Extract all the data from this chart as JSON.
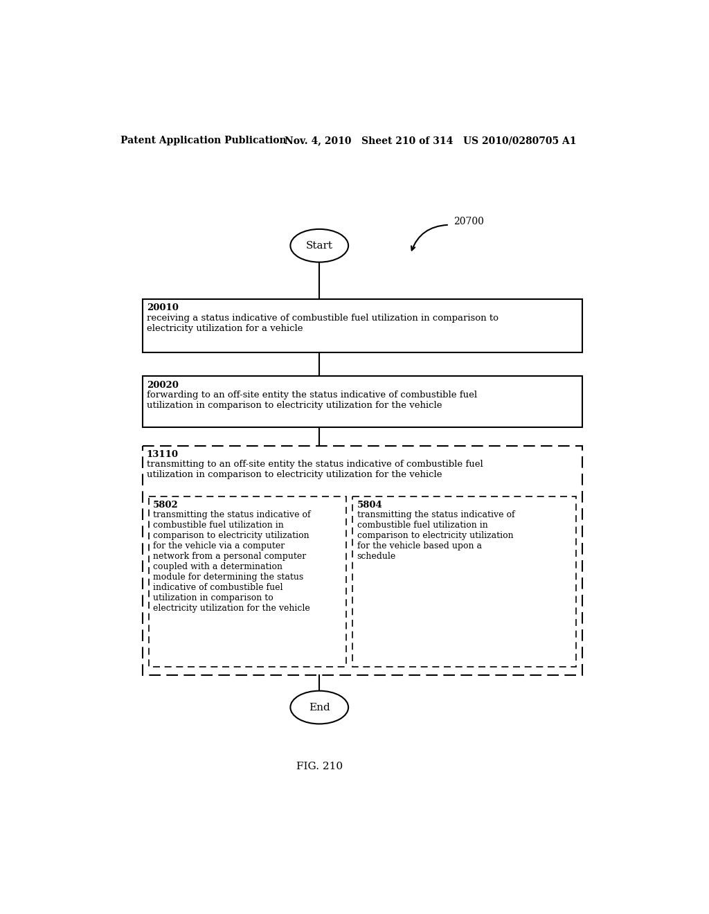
{
  "header_left": "Patent Application Publication",
  "header_right": "Nov. 4, 2010   Sheet 210 of 314   US 2010/0280705 A1",
  "fig_label": "FIG. 210",
  "label_20700": "20700",
  "start_label": "Start",
  "end_label": "End",
  "box1_id": "20010",
  "box1_text": "receiving a status indicative of combustible fuel utilization in comparison to\nelectricity utilization for a vehicle",
  "box2_id": "20020",
  "box2_text": "forwarding to an off-site entity the status indicative of combustible fuel\nutilization in comparison to electricity utilization for the vehicle",
  "outer_dashed_id": "13110",
  "outer_dashed_text": "transmitting to an off-site entity the status indicative of combustible fuel\nutilization in comparison to electricity utilization for the vehicle",
  "inner_left_id": "5802",
  "inner_left_text": "transmitting the status indicative of\ncombustible fuel utilization in\ncomparison to electricity utilization\nfor the vehicle via a computer\nnetwork from a personal computer\ncoupled with a determination\nmodule for determining the status\nindicative of combustible fuel\nutilization in comparison to\nelectricity utilization for the vehicle",
  "inner_right_id": "5804",
  "inner_right_text": "transmitting the status indicative of\ncombustible fuel utilization in\ncomparison to electricity utilization\nfor the vehicle based upon a\nschedule",
  "bg_color": "#ffffff",
  "text_color": "#000000"
}
